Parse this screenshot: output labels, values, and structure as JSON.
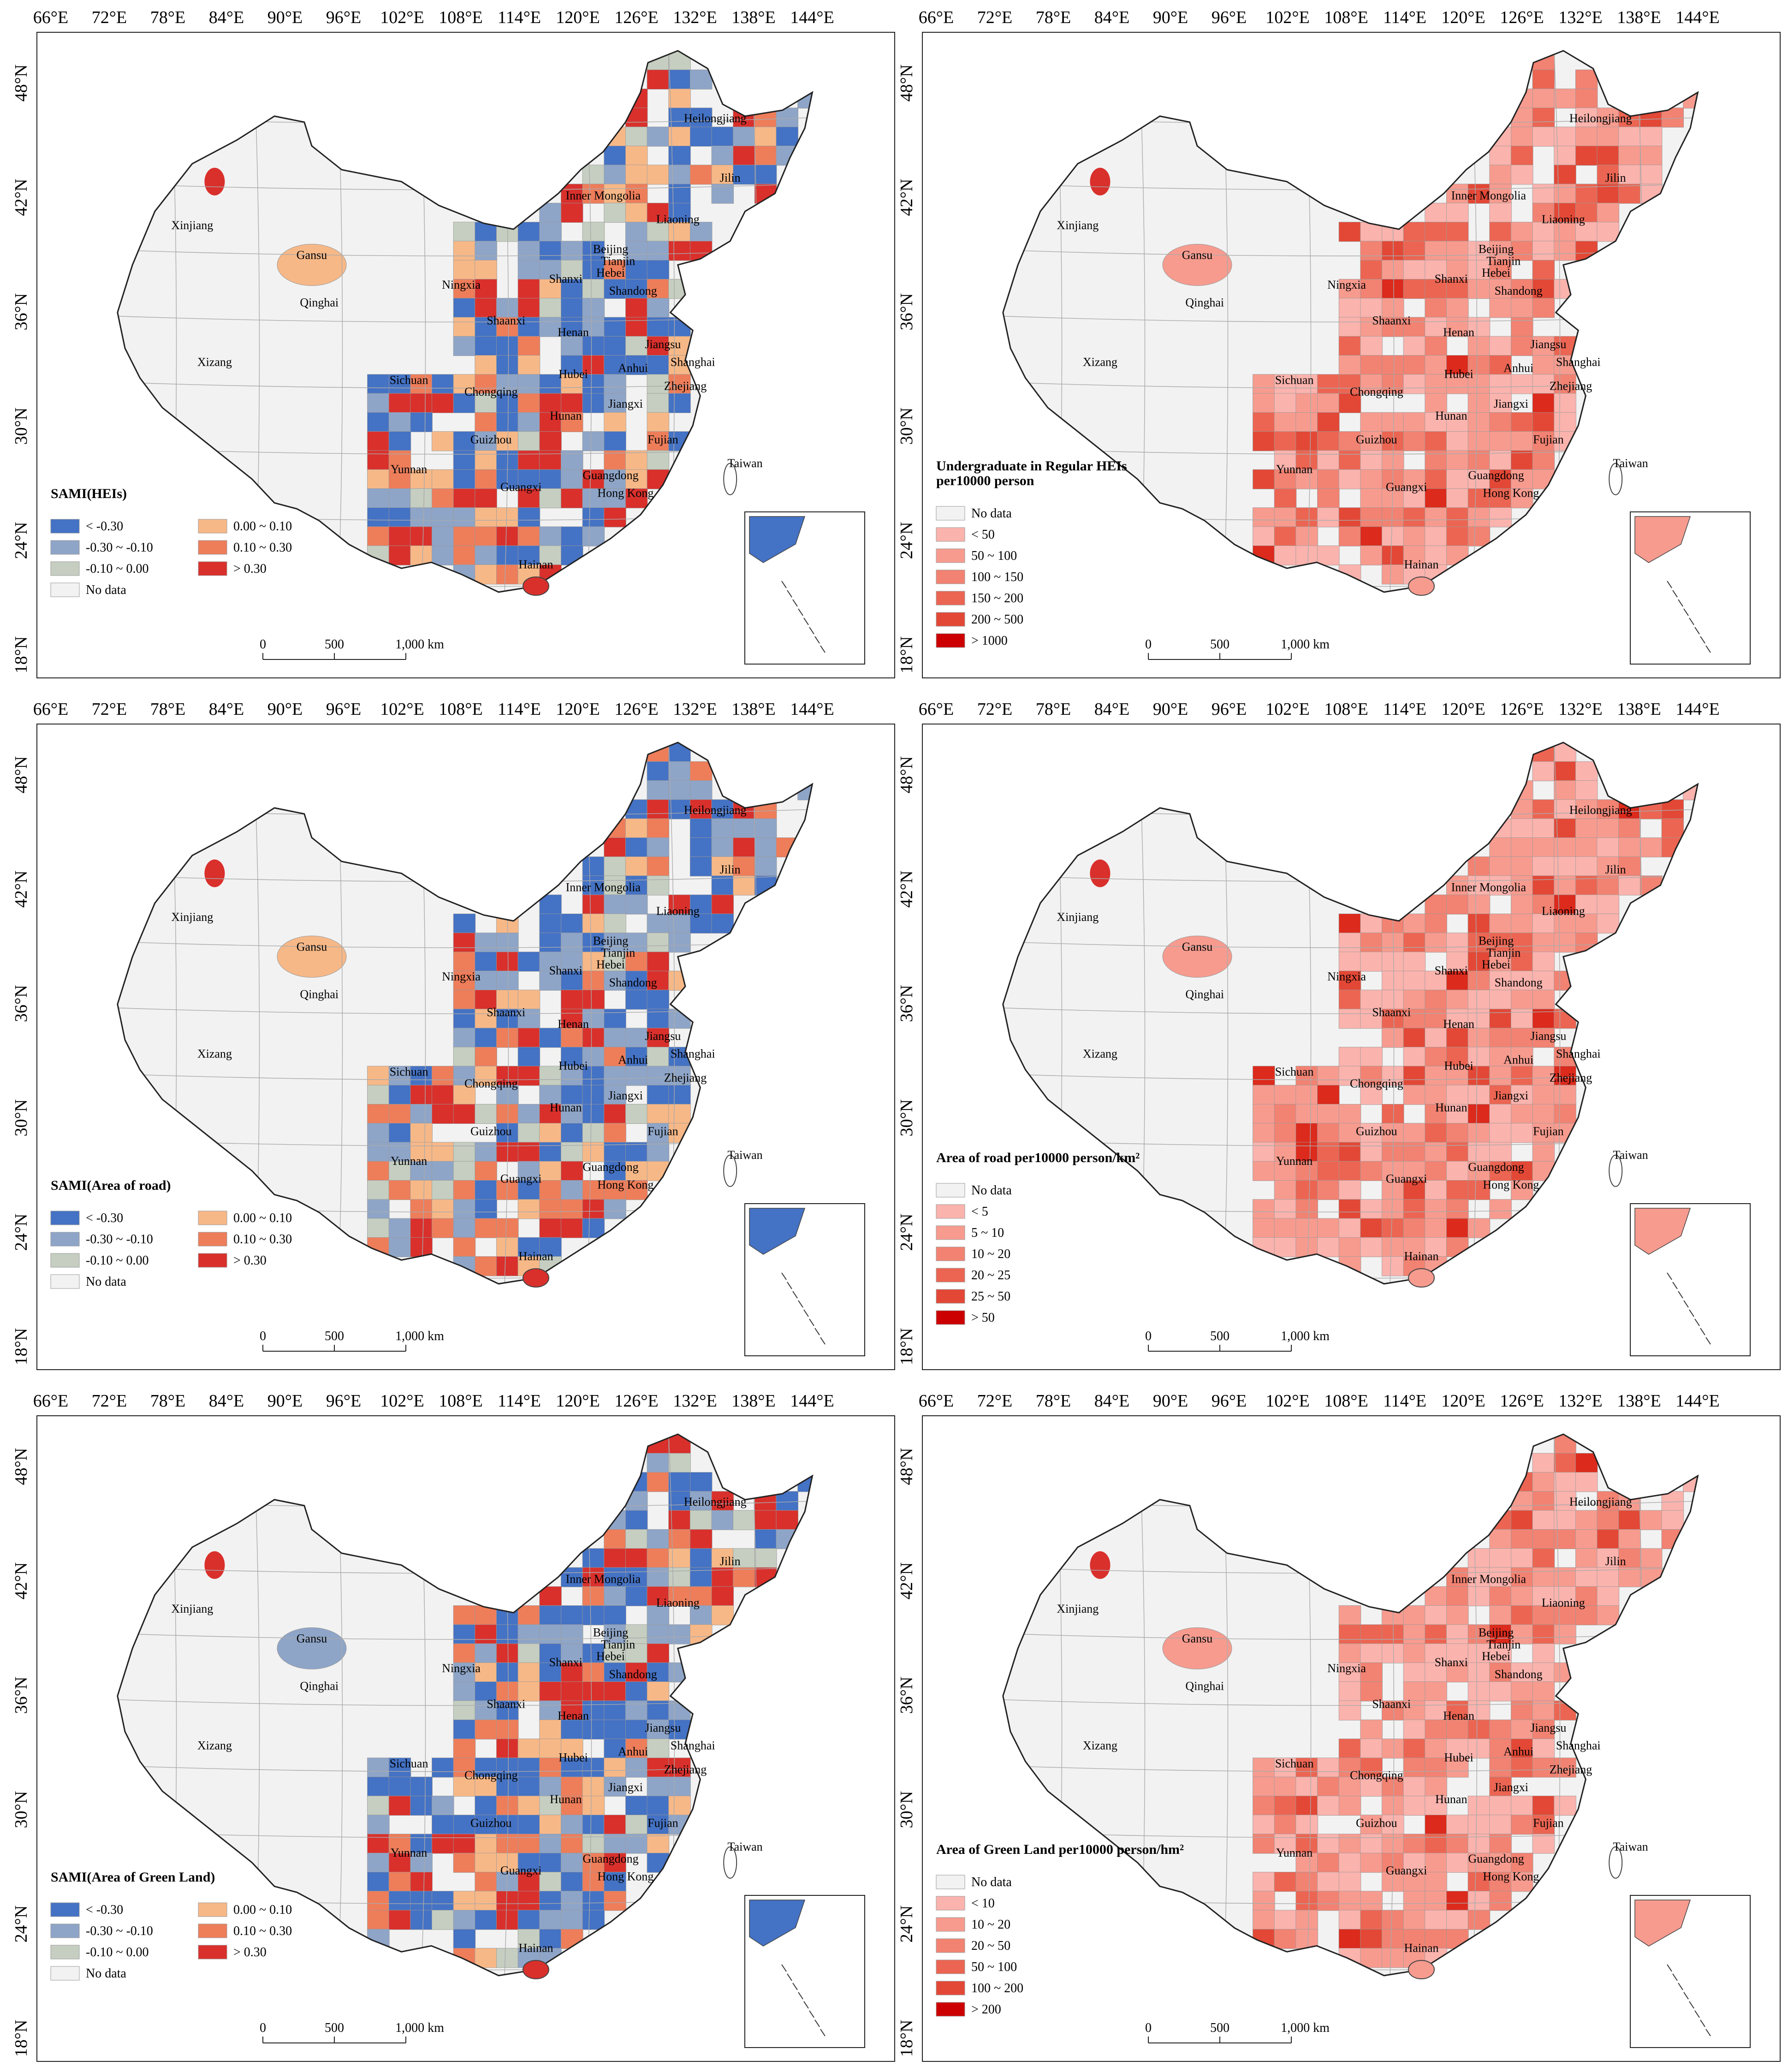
{
  "lon_labels": [
    "66°E",
    "72°E",
    "78°E",
    "84°E",
    "90°E",
    "96°E",
    "102°E",
    "108°E",
    "114°E",
    "120°E",
    "126°E",
    "132°E",
    "138°E",
    "144°E"
  ],
  "lat_labels": [
    "48°N",
    "42°N",
    "36°N",
    "30°N",
    "24°N",
    "18°N"
  ],
  "regions": [
    "Heilongjiang",
    "Jilin",
    "Inner Mongolia",
    "Liaoning",
    "Xinjiang",
    "Beijing",
    "Tianjin",
    "Gansu",
    "Hebei",
    "Shanxi",
    "Ningxia",
    "Shandong",
    "Qinghai",
    "Shaanxi",
    "Henan",
    "Jiangsu",
    "Xizang",
    "Anhui",
    "Shanghai",
    "Hubei",
    "Sichuan",
    "Chongqing",
    "Zhejiang",
    "Jiangxi",
    "Hunan",
    "Guizhou",
    "Fujian",
    "Yunnan",
    "Taiwan",
    "Guangxi",
    "Guangdong",
    "Hong Kong",
    "Hainan"
  ],
  "scale_bar": {
    "ticks": [
      "0",
      "500",
      "1,000 km"
    ]
  },
  "colors": {
    "blue_dark": "#4472c4",
    "blue_mid": "#8ea5c8",
    "grey_green": "#c5cec0",
    "no_data": "#f2f2f2",
    "orange_light": "#f7b887",
    "orange": "#ee7d5a",
    "red": "#d9302c",
    "pink1": "#fbb3ad",
    "pink2": "#f79b8f",
    "pink3": "#f28272",
    "pink4": "#ec6552",
    "pink5": "#e34836",
    "pink6": "#dc2a1c",
    "pink7": "#cc0000"
  },
  "panels": [
    {
      "legend_title_lines": [
        "SAMI(HEIs)"
      ],
      "legend_type": "sami",
      "legend_items": [
        "< -0.30",
        "-0.30 ~ -0.10",
        "-0.10 ~ 0.00",
        "No data",
        "0.00 ~ 0.10",
        "0.10 ~ 0.30",
        "> 0.30"
      ]
    },
    {
      "legend_title_lines": [
        "Undergraduate in Regular HEIs",
        "per10000 person"
      ],
      "legend_type": "value",
      "legend_items": [
        "No data",
        "< 50",
        "50 ~ 100",
        "100 ~ 150",
        "150 ~ 200",
        "200 ~ 500",
        "> 1000"
      ]
    },
    {
      "legend_title_lines": [
        "SAMI(Area of road)"
      ],
      "legend_type": "sami",
      "legend_items": [
        "< -0.30",
        "-0.30 ~ -0.10",
        "-0.10 ~ 0.00",
        "No data",
        "0.00 ~ 0.10",
        "0.10 ~ 0.30",
        "> 0.30"
      ]
    },
    {
      "legend_title_lines": [
        "Area of road per10000 person/km²"
      ],
      "legend_type": "value",
      "legend_items": [
        "No data",
        "< 5",
        "5 ~ 10",
        "10 ~ 20",
        "20 ~ 25",
        "25 ~ 50",
        "> 50"
      ]
    },
    {
      "legend_title_lines": [
        "SAMI(Area of Green Land)"
      ],
      "legend_type": "sami",
      "legend_items": [
        "< -0.30",
        "-0.30 ~ -0.10",
        "-0.10 ~ 0.00",
        "No data",
        "0.00 ~ 0.10",
        "0.10 ~ 0.30",
        "> 0.30"
      ]
    },
    {
      "legend_title_lines": [
        "Area of Green Land per10000 person/hm²"
      ],
      "legend_type": "value",
      "legend_items": [
        "No data",
        "< 10",
        "10 ~ 20",
        "20 ~ 50",
        "50 ~ 100",
        "100 ~ 200",
        "> 200"
      ]
    }
  ]
}
